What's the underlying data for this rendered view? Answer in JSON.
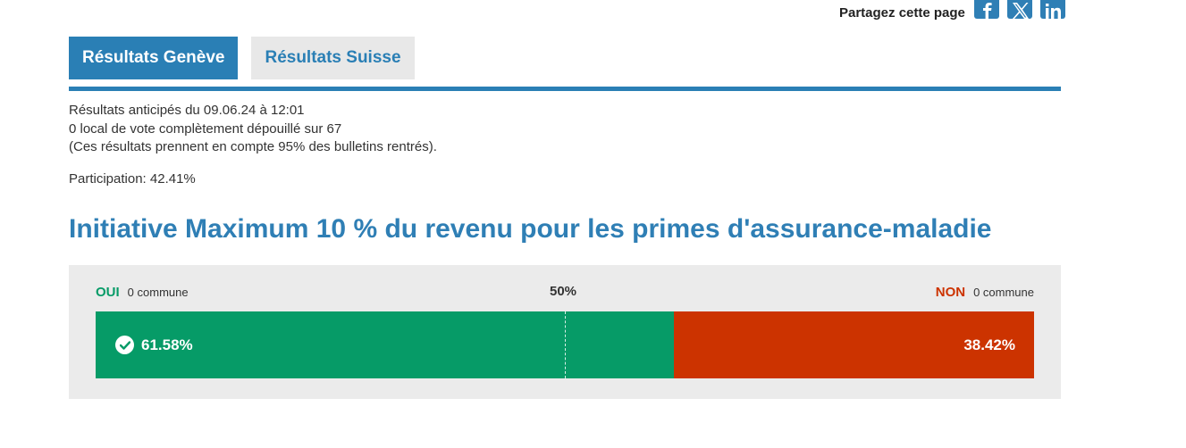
{
  "share": {
    "label": "Partagez cette page",
    "icons": [
      "facebook-icon",
      "x-icon",
      "linkedin-icon"
    ]
  },
  "tabs": [
    {
      "label": "Résultats Genève",
      "active": true
    },
    {
      "label": "Résultats Suisse",
      "active": false
    }
  ],
  "info": {
    "line1": "Résultats anticipés du 09.06.24 à 12:01",
    "line2": "0 local de vote complètement dépouillé sur 67",
    "line3": "(Ces résultats prennent en compte 95% des bulletins rentrés).",
    "participation": "Participation: 42.41%"
  },
  "title": "Initiative Maximum 10 % du revenu pour les primes d'assurance-maladie",
  "result": {
    "yes_label": "OUI",
    "yes_communes": "0 commune",
    "no_label": "NON",
    "no_communes": "0 commune",
    "half_label": "50%",
    "yes_pct": 61.58,
    "no_pct": 38.42,
    "yes_pct_text": "61.58%",
    "no_pct_text": "38.42%"
  },
  "colors": {
    "accent": "#2a7fb5",
    "yes": "#069b67",
    "no": "#cc3300",
    "panel": "#ebebeb"
  }
}
